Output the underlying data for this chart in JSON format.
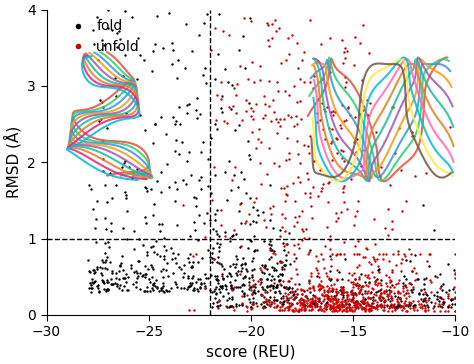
{
  "title": "",
  "xlabel": "score (REU)",
  "ylabel": "RMSD (Å)",
  "xlim": [
    -30,
    -10
  ],
  "ylim": [
    0,
    4
  ],
  "xticks": [
    -30,
    -25,
    -20,
    -15,
    -10
  ],
  "yticks": [
    0,
    1,
    2,
    3,
    4
  ],
  "vline_x": -22,
  "hline_y": 1.0,
  "fold_color": "#000000",
  "unfold_color": "#cc0000",
  "marker_size": 3,
  "legend_labels": [
    "fold",
    "unfold"
  ],
  "background_color": "#ffffff",
  "seed": 42,
  "fold_n": 900,
  "unfold_n": 1000
}
